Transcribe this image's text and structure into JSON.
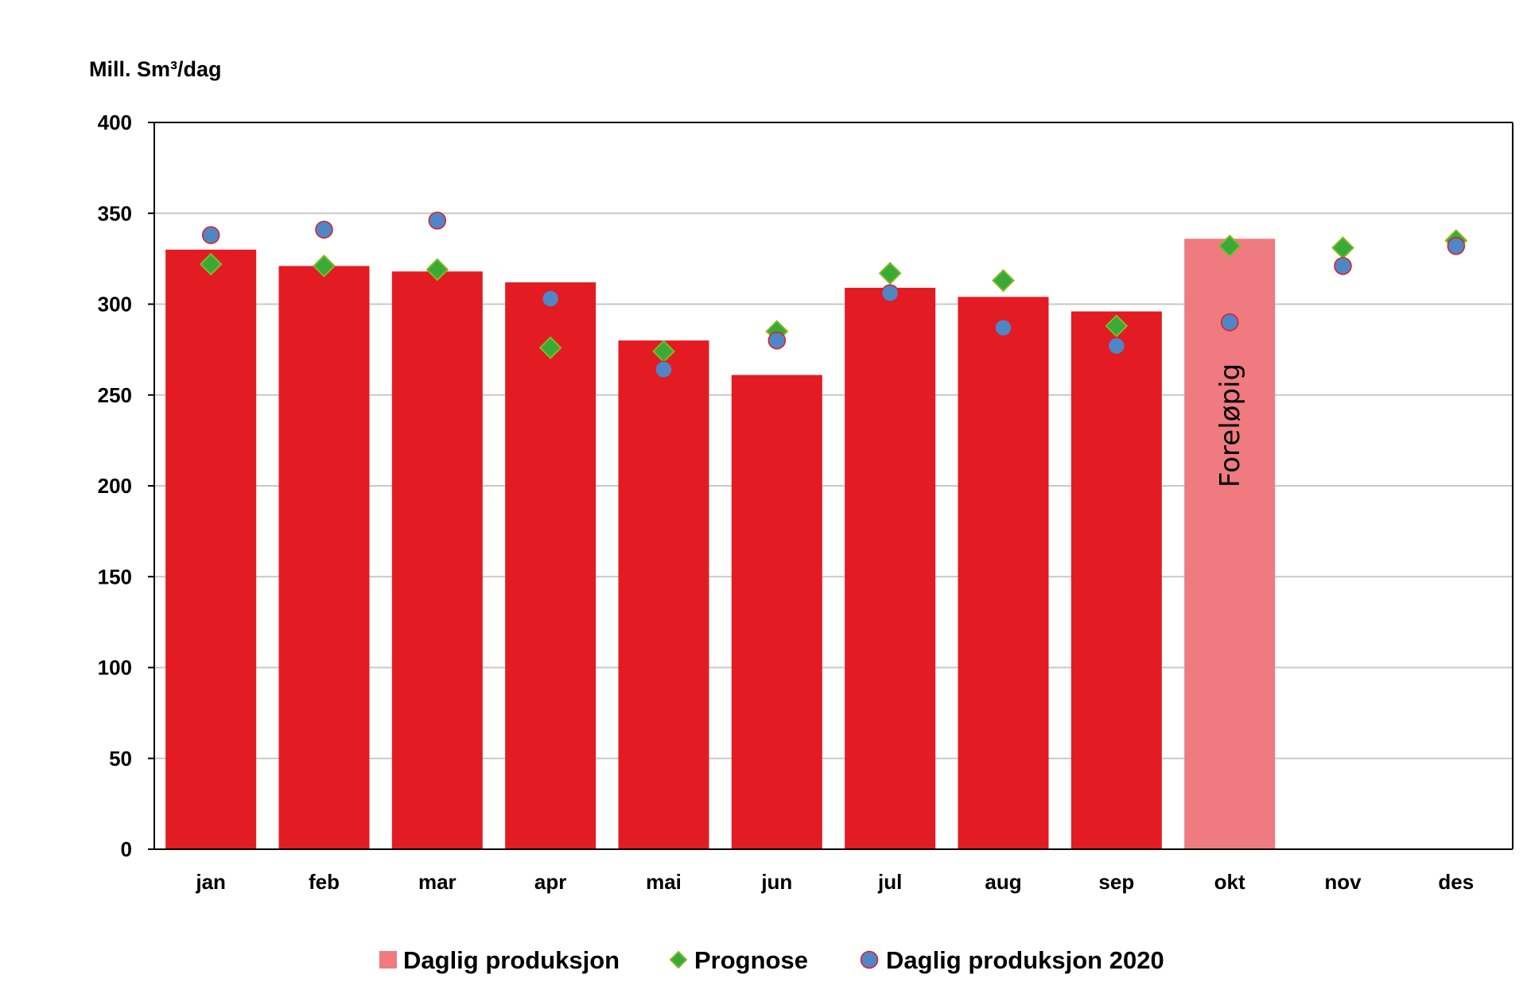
{
  "chart_data": {
    "type": "bar",
    "ylabel": "Mill. Sm³/dag",
    "ylim": [
      0,
      400
    ],
    "yticks": [
      0,
      50,
      100,
      150,
      200,
      250,
      300,
      350,
      400
    ],
    "categories": [
      "jan",
      "feb",
      "mar",
      "apr",
      "mai",
      "jun",
      "jul",
      "aug",
      "sep",
      "okt",
      "nov",
      "des"
    ],
    "grid": true,
    "legend_position": "bottom",
    "series": [
      {
        "name": "Daglig produksjon",
        "kind": "bar",
        "values": [
          330,
          321,
          318,
          312,
          280,
          261,
          309,
          304,
          296,
          336,
          null,
          null
        ],
        "color": "#e31b23",
        "preliminary_index": 9,
        "preliminary_color": "#ef7a80"
      },
      {
        "name": "Prognose",
        "kind": "diamond",
        "values": [
          322,
          321,
          319,
          276,
          274,
          285,
          317,
          313,
          288,
          332,
          331,
          335
        ],
        "color": "#3aa935",
        "edge": "#7dbb28"
      },
      {
        "name": "Daglig produksjon 2020",
        "kind": "circle",
        "values": [
          338,
          341,
          346,
          303,
          264,
          280,
          306,
          287,
          277,
          290,
          321,
          332
        ],
        "color": "#4f86c6",
        "edge": "#e31b23"
      }
    ],
    "annotations": [
      {
        "text": "Foreløpig",
        "category": "okt",
        "rotation": -90
      }
    ]
  }
}
